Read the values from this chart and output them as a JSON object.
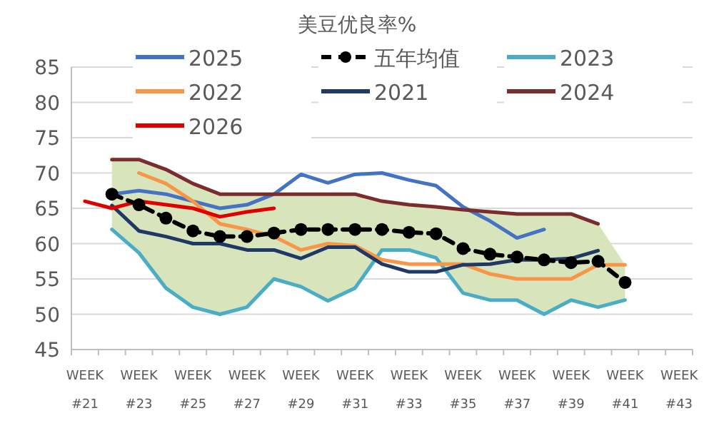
{
  "chart_data": {
    "type": "line",
    "title": "美豆优良率%",
    "categories": [
      "WEEK #21",
      null,
      "WEEK #23",
      null,
      "WEEK #25",
      null,
      "WEEK #27",
      null,
      "WEEK #29",
      null,
      "WEEK #31",
      null,
      "WEEK #33",
      null,
      "WEEK #35",
      null,
      "WEEK #37",
      null,
      "WEEK #39",
      null,
      "WEEK #41",
      null,
      "WEEK #43"
    ],
    "ylim": [
      45,
      85
    ],
    "yticks": [
      45,
      50,
      55,
      60,
      65,
      70,
      75,
      80,
      85
    ],
    "grid": "y",
    "legend": "top",
    "series": [
      {
        "name": "2025",
        "color": "#4472c4",
        "values": [
          null,
          67,
          67.5,
          67,
          66,
          65,
          65.5,
          67,
          69.8,
          68.6,
          69.8,
          70,
          69,
          68.2,
          65.2,
          63.2,
          60.8,
          62,
          null,
          null,
          null,
          null,
          null
        ]
      },
      {
        "name": "五年均值",
        "color": "#000000",
        "line_style": "dashed",
        "marker": "circle",
        "values": [
          null,
          67,
          65.5,
          63.6,
          61.8,
          61,
          61,
          61.5,
          62,
          62,
          62,
          62,
          61.6,
          61.4,
          59.3,
          58.5,
          58.1,
          57.7,
          57.3,
          57.5,
          54.5,
          null,
          null
        ],
        "lower": [
          null,
          62,
          58.7,
          53.7,
          51,
          50,
          51,
          55,
          53.9,
          51.9,
          53.7,
          59.1,
          59.1,
          58,
          53,
          52,
          52,
          50,
          52,
          51,
          52,
          null,
          null
        ],
        "upper": [
          null,
          72,
          72,
          70.5,
          68.5,
          67,
          67,
          67,
          67,
          67,
          67,
          66,
          65.5,
          65.2,
          64.8,
          64.5,
          64.2,
          64.2,
          64.2,
          62.8,
          57,
          null,
          null
        ]
      },
      {
        "name": "2023",
        "color": "#4bacc6",
        "values": [
          null,
          62,
          58.7,
          53.7,
          51,
          50,
          51,
          55,
          53.9,
          51.9,
          53.7,
          59.1,
          59.1,
          58,
          53,
          52,
          52,
          50,
          52,
          51,
          52,
          null,
          null
        ]
      },
      {
        "name": "2022",
        "color": "#f79646",
        "values": [
          null,
          null,
          70,
          68.5,
          66,
          62.8,
          62,
          61,
          59.1,
          60,
          59.7,
          57.7,
          57.1,
          57.1,
          57.1,
          55.7,
          55,
          55,
          55,
          57,
          57,
          null,
          null
        ]
      },
      {
        "name": "2021",
        "color": "#1f3864",
        "values": [
          null,
          65.4,
          61.8,
          61,
          60,
          60,
          59.1,
          59.1,
          57.9,
          59.5,
          59.5,
          57.1,
          56,
          56,
          57,
          57.1,
          57.7,
          57.7,
          57.9,
          59,
          null,
          null,
          null
        ]
      },
      {
        "name": "2024",
        "color": "#7b2c2c",
        "values": [
          null,
          71.9,
          71.9,
          70.5,
          68.5,
          67,
          67,
          67,
          67,
          67,
          67,
          66,
          65.5,
          65.2,
          64.8,
          64.5,
          64.2,
          64.2,
          64.2,
          62.8,
          null,
          null,
          null
        ]
      },
      {
        "name": "2026",
        "color": "#e00000",
        "values": [
          66,
          65,
          66,
          65.5,
          65,
          63.8,
          64.5,
          65,
          null,
          null,
          null,
          null,
          null,
          null,
          null,
          null,
          null,
          null,
          null,
          null,
          null,
          null,
          null
        ]
      }
    ]
  }
}
